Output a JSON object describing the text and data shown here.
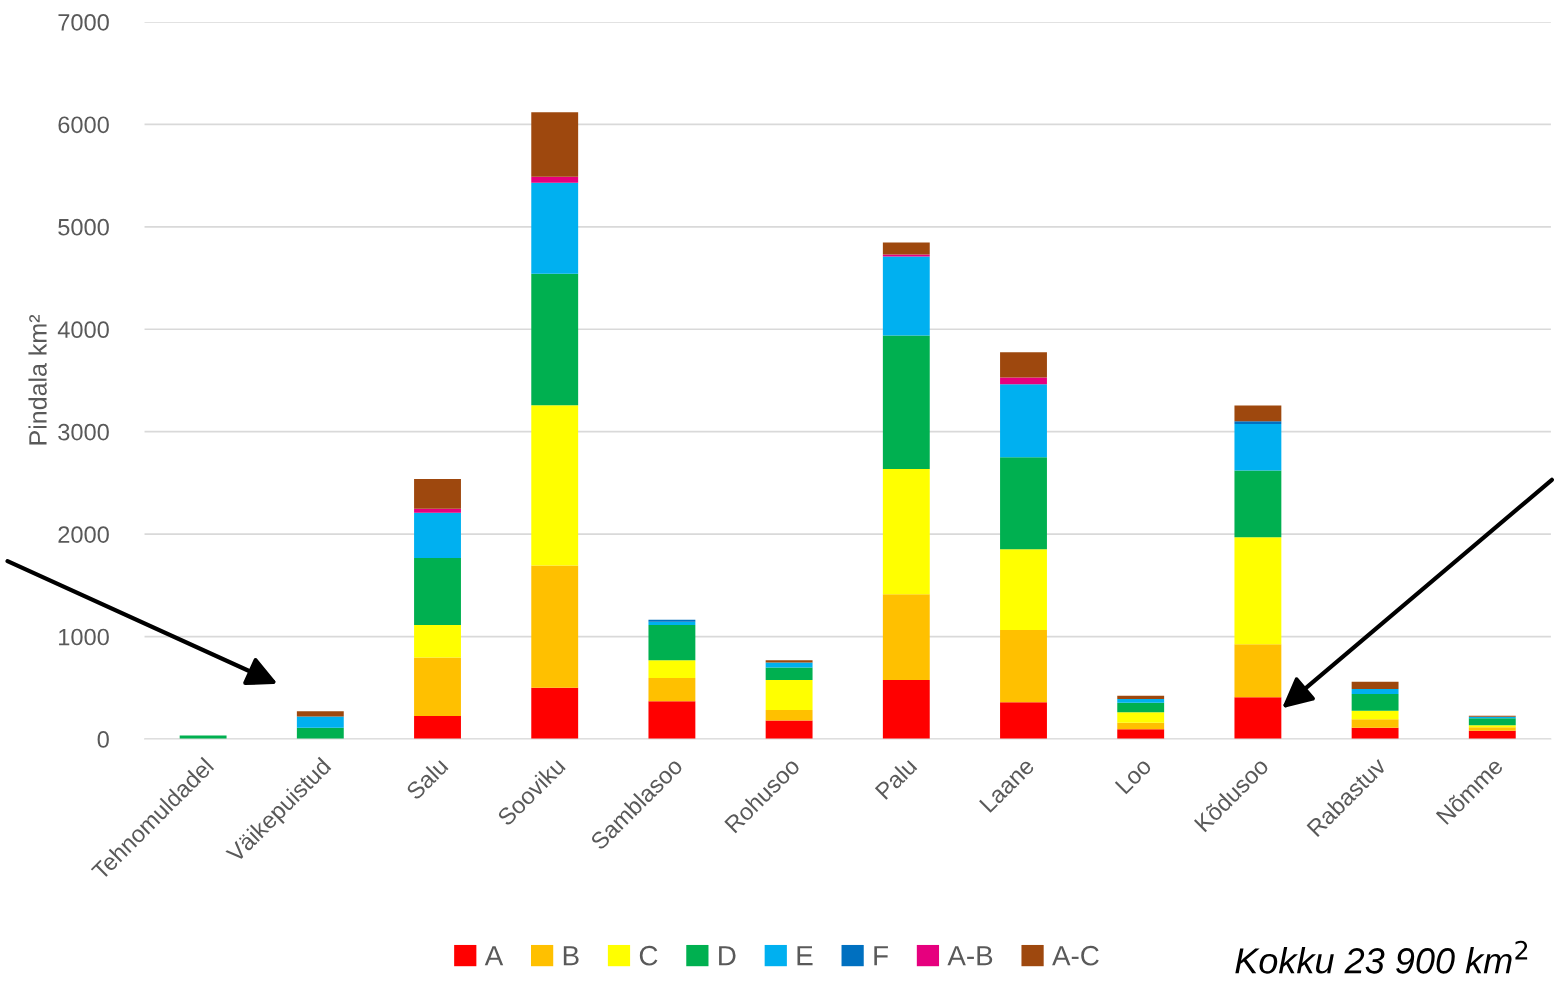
{
  "chart_data": {
    "type": "bar",
    "stacked": true,
    "ylabel": "Pindala km²",
    "categories": [
      "Tehnomuldadel",
      "Väikepuistud",
      "Salu",
      "Sooviku",
      "Samblasoo",
      "Rohusoo",
      "Palu",
      "Laane",
      "Loo",
      "Kõdusoo",
      "Rabastuv",
      "Nõmme"
    ],
    "series": [
      {
        "name": "A",
        "color": "#ff0000",
        "values": [
          0,
          0,
          225,
          500,
          370,
          180,
          576,
          358,
          95,
          407,
          110,
          81
        ]
      },
      {
        "name": "B",
        "color": "#ffc000",
        "values": [
          0,
          0,
          570,
          1195,
          225,
          103,
          837,
          706,
          65,
          518,
          82,
          33
        ]
      },
      {
        "name": "C",
        "color": "#ffff00",
        "values": [
          0,
          0,
          318,
          1563,
          175,
          293,
          1224,
          788,
          101,
          1045,
          84,
          20
        ]
      },
      {
        "name": "D",
        "color": "#00b050",
        "values": [
          35,
          110,
          655,
          1283,
          342,
          122,
          1301,
          899,
          94,
          650,
          163,
          68
        ]
      },
      {
        "name": "E",
        "color": "#00b0f0",
        "values": [
          0,
          110,
          440,
          889,
          33,
          49,
          772,
          713,
          35,
          456,
          49,
          16
        ]
      },
      {
        "name": "F",
        "color": "#0070c0",
        "values": [
          0,
          0,
          0,
          0,
          20,
          0,
          0,
          0,
          0,
          26,
          0,
          0
        ]
      },
      {
        "name": "A-B",
        "color": "#e6007e",
        "values": [
          0,
          0,
          40,
          58,
          0,
          0,
          20,
          65,
          0,
          0,
          0,
          0
        ]
      },
      {
        "name": "A-C",
        "color": "#9e480e",
        "values": [
          0,
          50,
          290,
          630,
          0,
          21,
          117,
          247,
          33,
          153,
          72,
          10
        ]
      }
    ],
    "ylim": [
      0,
      7000
    ],
    "yticks": [
      0,
      1000,
      2000,
      3000,
      4000,
      5000,
      6000,
      7000
    ],
    "grid": "y",
    "legend": "bottom",
    "annotations": [
      "Kokku 23 900 km$^{2}$"
    ]
  }
}
